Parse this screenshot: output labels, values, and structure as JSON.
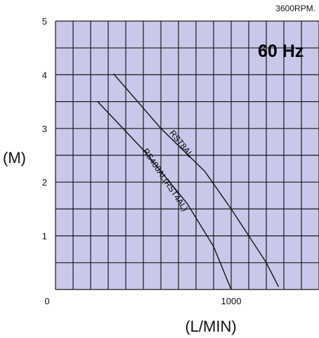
{
  "chart_data": {
    "type": "line",
    "annotation": "3600RPM.",
    "frequency_label": "60 Hz",
    "xlabel": "(L/MIN)",
    "ylabel": "(M)",
    "xlim": [
      0,
      1500
    ],
    "ylim": [
      0,
      5
    ],
    "x_ticks": [
      {
        "value": 0,
        "label": "0"
      },
      {
        "value": 1000,
        "label": "1000"
      }
    ],
    "y_ticks": [
      {
        "value": 1,
        "label": "1"
      },
      {
        "value": 2,
        "label": "2"
      },
      {
        "value": 3,
        "label": "3"
      },
      {
        "value": 4,
        "label": "4"
      },
      {
        "value": 5,
        "label": "5"
      }
    ],
    "grid": true,
    "series": [
      {
        "name": "RST8AL",
        "x": [
          330,
          600,
          850,
          1000,
          1200,
          1270
        ],
        "y": [
          4.02,
          3.0,
          2.2,
          1.5,
          0.5,
          0.05
        ]
      },
      {
        "name": "RS400AL(RST4AL)",
        "x": [
          240,
          500,
          750,
          900,
          1000
        ],
        "y": [
          3.5,
          2.6,
          1.6,
          0.8,
          0.0
        ]
      }
    ],
    "colors": {
      "plot_background": "#c9c8ea",
      "grid": "#1a1a1a",
      "curve": "#111111"
    }
  }
}
